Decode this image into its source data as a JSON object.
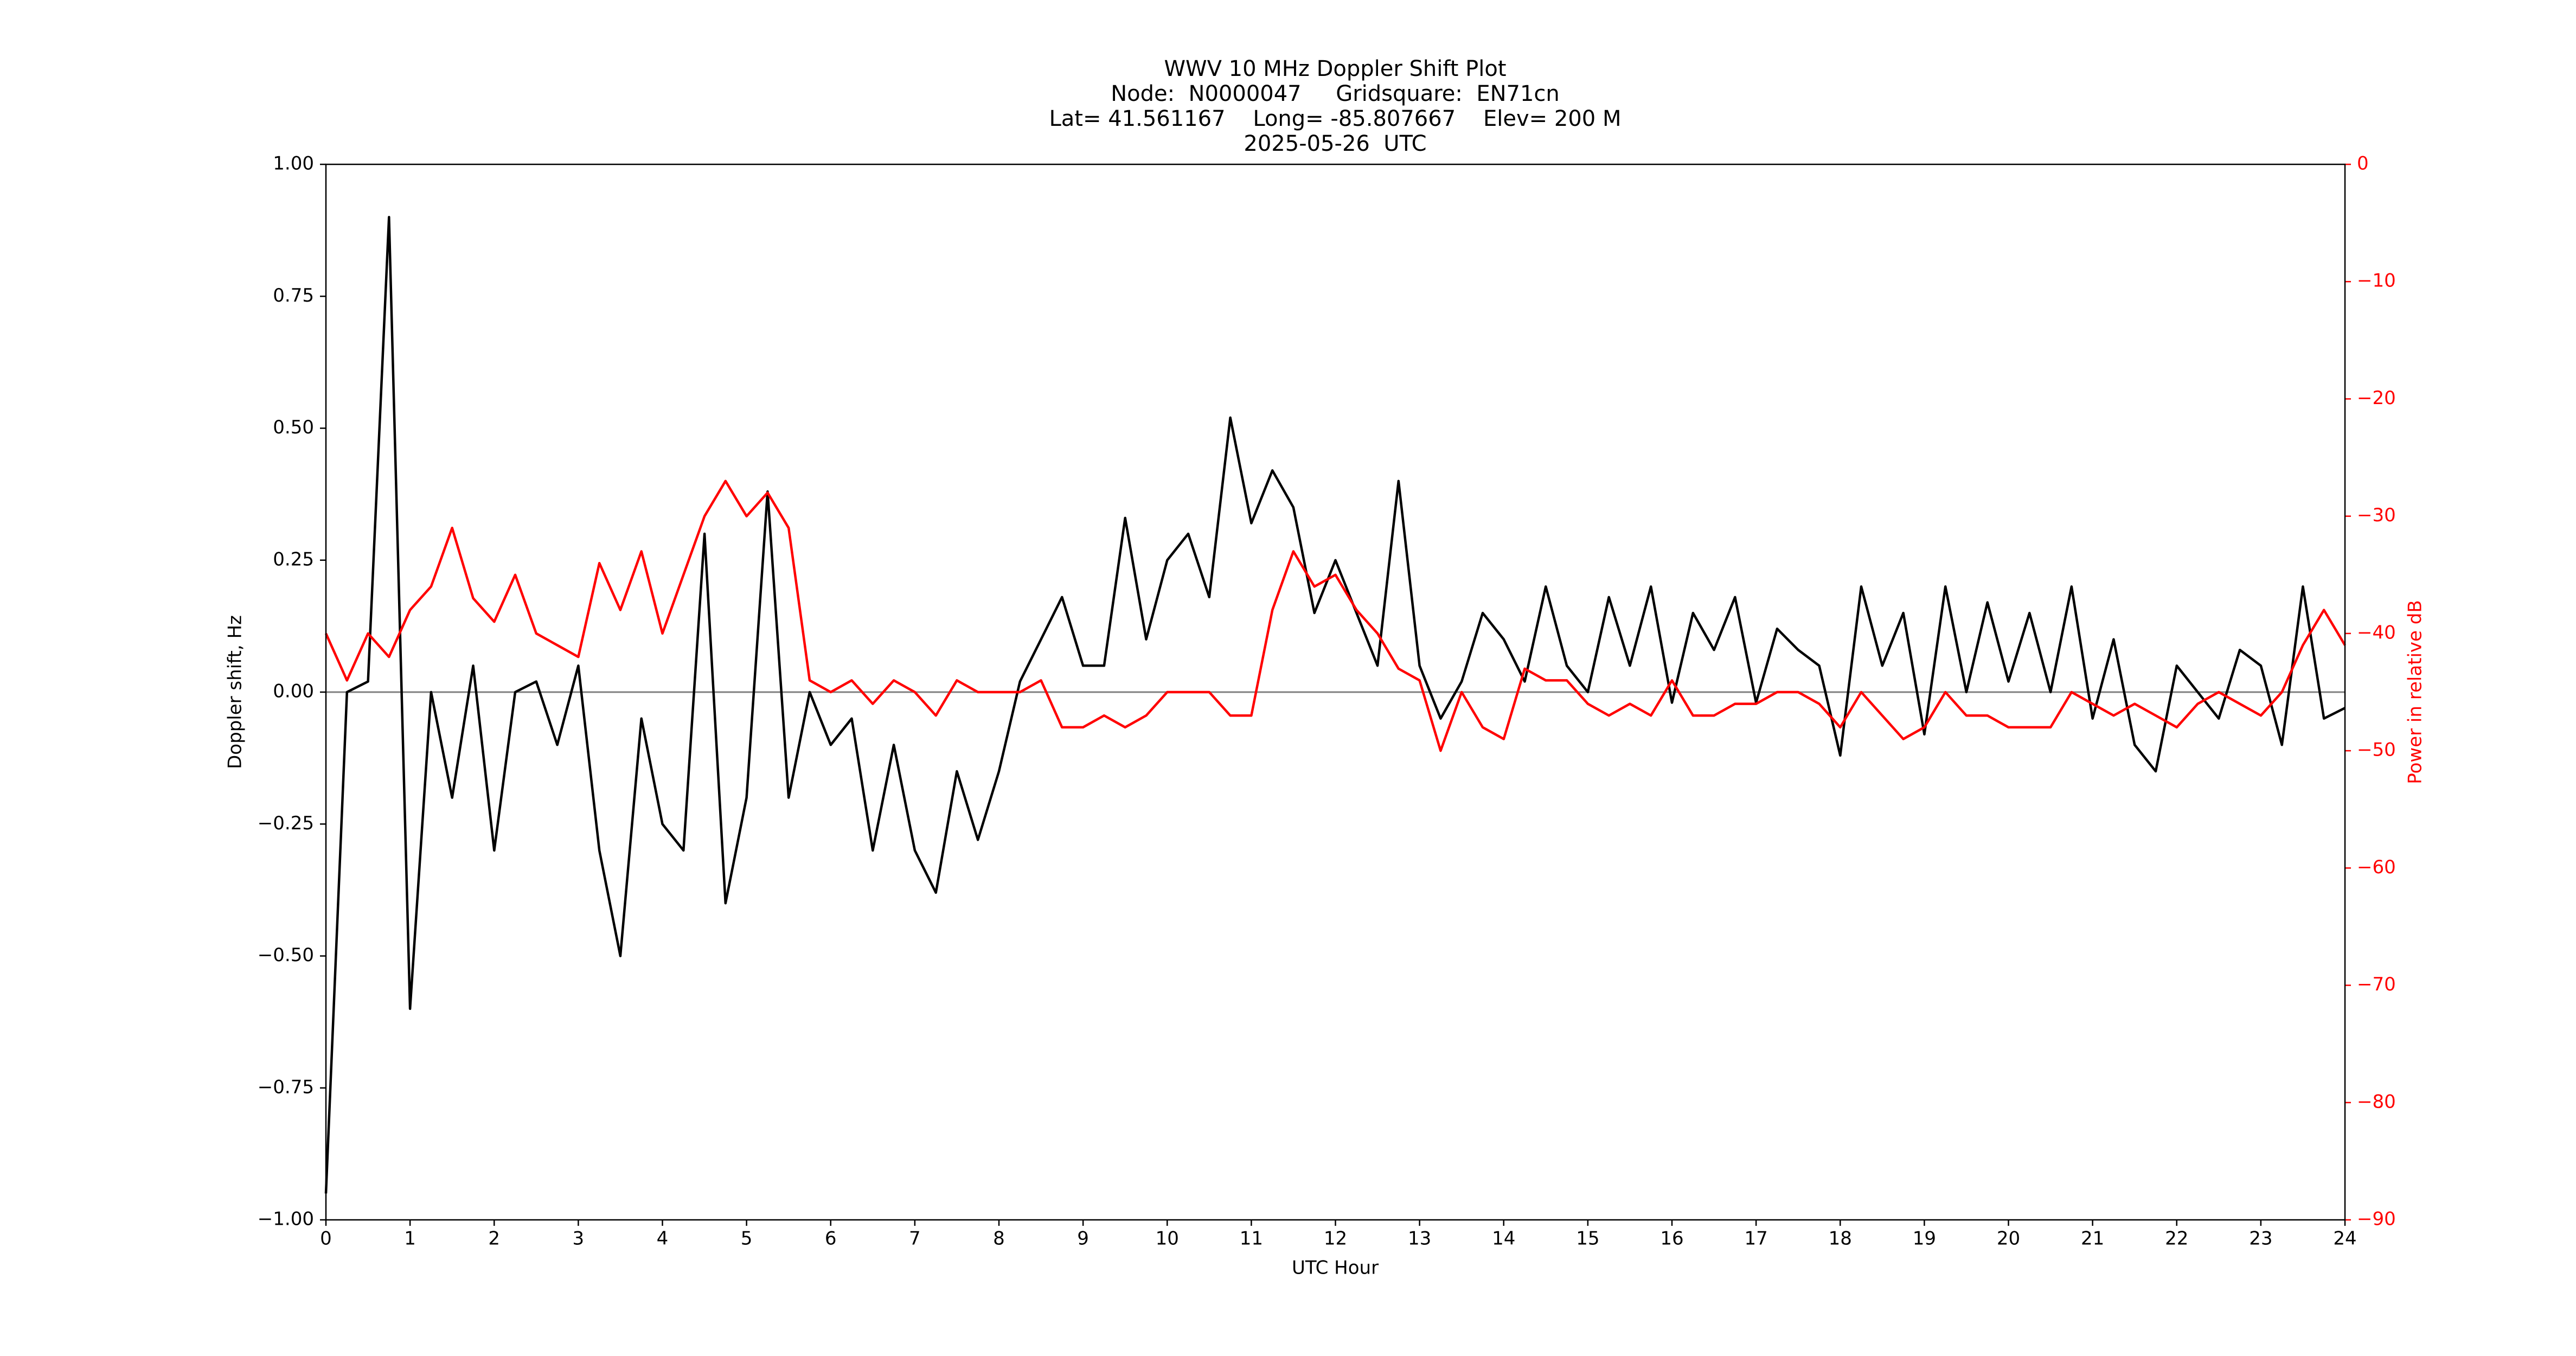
{
  "chart_data": {
    "type": "line",
    "title": "WWV 10 MHz Doppler Shift Plot",
    "subtitle": [
      "Node:  N0000047     Gridsquare:  EN71cn",
      "Lat= 41.561167    Long= -85.807667    Elev= 200 M",
      "2025-05-26  UTC"
    ],
    "xlabel": "UTC Hour",
    "ylabel": "Doppler shift, Hz",
    "y2label": "Power in relative dB",
    "x": [
      0,
      0.25,
      0.5,
      0.75,
      1,
      1.25,
      1.5,
      1.75,
      2,
      2.25,
      2.5,
      2.75,
      3,
      3.25,
      3.5,
      3.75,
      4,
      4.25,
      4.5,
      4.75,
      5,
      5.25,
      5.5,
      5.75,
      6,
      6.25,
      6.5,
      6.75,
      7,
      7.25,
      7.5,
      7.75,
      8,
      8.25,
      8.5,
      8.75,
      9,
      9.25,
      9.5,
      9.75,
      10,
      10.25,
      10.5,
      10.75,
      11,
      11.25,
      11.5,
      11.75,
      12,
      12.25,
      12.5,
      12.75,
      13,
      13.25,
      13.5,
      13.75,
      14,
      14.25,
      14.5,
      14.75,
      15,
      15.25,
      15.5,
      15.75,
      16,
      16.25,
      16.5,
      16.75,
      17,
      17.25,
      17.5,
      17.75,
      18,
      18.25,
      18.5,
      18.75,
      19,
      19.25,
      19.5,
      19.75,
      20,
      20.25,
      20.5,
      20.75,
      21,
      21.25,
      21.5,
      21.75,
      22,
      22.25,
      22.5,
      22.75,
      23,
      23.25,
      23.5,
      23.75,
      24
    ],
    "series": [
      {
        "name": "Doppler shift",
        "color": "#000000",
        "axis": "y",
        "values": [
          -0.95,
          0.0,
          0.02,
          0.9,
          -0.6,
          0.0,
          -0.2,
          0.05,
          -0.3,
          0.0,
          0.02,
          -0.1,
          0.05,
          -0.3,
          -0.5,
          -0.05,
          -0.25,
          -0.3,
          0.3,
          -0.4,
          -0.2,
          0.38,
          -0.2,
          0.0,
          -0.1,
          -0.05,
          -0.3,
          -0.1,
          -0.3,
          -0.38,
          -0.15,
          -0.28,
          -0.15,
          0.02,
          0.1,
          0.18,
          0.05,
          0.05,
          0.33,
          0.1,
          0.25,
          0.3,
          0.18,
          0.52,
          0.32,
          0.42,
          0.35,
          0.15,
          0.25,
          0.15,
          0.05,
          0.4,
          0.05,
          -0.05,
          0.02,
          0.15,
          0.1,
          0.02,
          0.2,
          0.05,
          0.0,
          0.18,
          0.05,
          0.2,
          -0.02,
          0.15,
          0.08,
          0.18,
          -0.02,
          0.12,
          0.08,
          0.05,
          -0.12,
          0.2,
          0.05,
          0.15,
          -0.08,
          0.2,
          0.0,
          0.17,
          0.02,
          0.15,
          0.0,
          0.2,
          -0.05,
          0.1,
          -0.1,
          -0.15,
          0.05,
          0.0,
          -0.05,
          0.08,
          0.05,
          -0.1,
          0.2,
          -0.05,
          -0.03
        ]
      },
      {
        "name": "Power",
        "color": "#ff0000",
        "axis": "y2",
        "values": [
          -40,
          -44,
          -40,
          -42,
          -38,
          -36,
          -31,
          -37,
          -39,
          -35,
          -40,
          -41,
          -42,
          -34,
          -38,
          -33,
          -40,
          -35,
          -30,
          -27,
          -30,
          -28,
          -31,
          -44,
          -45,
          -44,
          -46,
          -44,
          -45,
          -47,
          -44,
          -45,
          -45,
          -45,
          -44,
          -48,
          -48,
          -47,
          -48,
          -47,
          -45,
          -45,
          -45,
          -47,
          -47,
          -38,
          -33,
          -36,
          -35,
          -38,
          -40,
          -43,
          -44,
          -50,
          -45,
          -48,
          -49,
          -43,
          -44,
          -44,
          -46,
          -47,
          -46,
          -47,
          -44,
          -47,
          -47,
          -46,
          -46,
          -45,
          -45,
          -46,
          -48,
          -45,
          -47,
          -49,
          -48,
          -45,
          -47,
          -47,
          -48,
          -48,
          -48,
          -45,
          -46,
          -47,
          -46,
          -47,
          -48,
          -46,
          -45,
          -46,
          -47,
          -45,
          -41,
          -38,
          -41
        ]
      }
    ],
    "xlim": [
      0,
      24
    ],
    "xticks": [
      0,
      1,
      2,
      3,
      4,
      5,
      6,
      7,
      8,
      9,
      10,
      11,
      12,
      13,
      14,
      15,
      16,
      17,
      18,
      19,
      20,
      21,
      22,
      23,
      24
    ],
    "ylim": [
      -1,
      1
    ],
    "yticks": [
      {
        "value": -1,
        "label": "−1.00"
      },
      {
        "value": -0.75,
        "label": "−0.75"
      },
      {
        "value": -0.5,
        "label": "−0.50"
      },
      {
        "value": -0.25,
        "label": "−0.25"
      },
      {
        "value": 0,
        "label": "0.00"
      },
      {
        "value": 0.25,
        "label": "0.25"
      },
      {
        "value": 0.5,
        "label": "0.50"
      },
      {
        "value": 0.75,
        "label": "0.75"
      },
      {
        "value": 1,
        "label": "1.00"
      }
    ],
    "y2lim": [
      -90,
      0
    ],
    "y2ticks": [
      {
        "value": -90,
        "label": "−90"
      },
      {
        "value": -80,
        "label": "−80"
      },
      {
        "value": -70,
        "label": "−70"
      },
      {
        "value": -60,
        "label": "−60"
      },
      {
        "value": -50,
        "label": "−50"
      },
      {
        "value": -40,
        "label": "−40"
      },
      {
        "value": -30,
        "label": "−30"
      },
      {
        "value": -20,
        "label": "−20"
      },
      {
        "value": -10,
        "label": "−10"
      },
      0
    ],
    "y2color": "#ff0000",
    "hlines": [
      {
        "value": 0,
        "color": "#808080"
      }
    ],
    "grid": false
  }
}
